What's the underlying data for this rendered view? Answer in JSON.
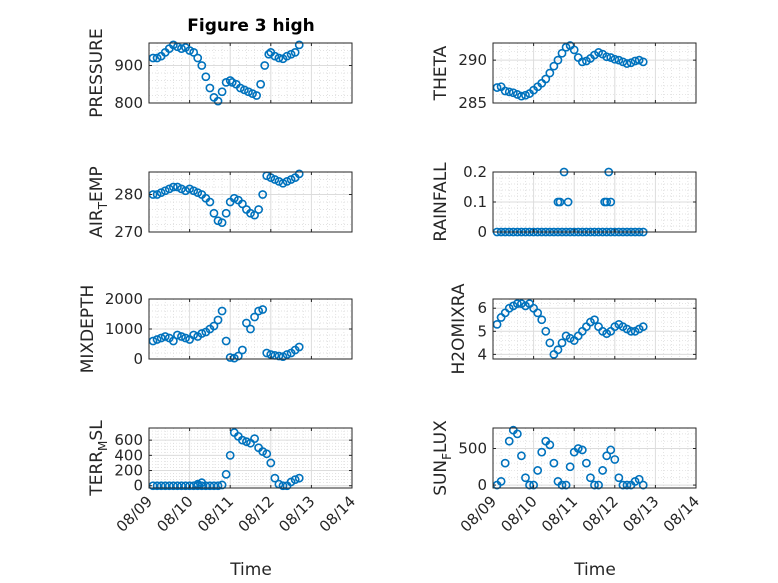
{
  "figure": {
    "title": "Figure 3 high",
    "marker_color": "#0072BD",
    "grid": true,
    "x_labels": {
      "left": "Time",
      "right": "Time"
    }
  },
  "chart_data": [
    {
      "type": "scatter",
      "ylabel": "PRESSURE",
      "ylabel_parts": [
        "PRESSURE"
      ],
      "ylim": [
        800,
        960
      ],
      "yticks": [
        800,
        900
      ],
      "xlim": [
        0,
        5
      ],
      "xticks": [
        0,
        1,
        2,
        3,
        4,
        5
      ],
      "xticklabels": [
        "08/09",
        "08/10",
        "08/11",
        "08/12",
        "08/13",
        "08/14"
      ],
      "x": [
        0.1,
        0.2,
        0.3,
        0.4,
        0.5,
        0.6,
        0.7,
        0.8,
        0.9,
        1.0,
        1.1,
        1.2,
        1.3,
        1.4,
        1.5,
        1.6,
        1.7,
        1.8,
        1.9,
        2.0,
        2.05,
        2.15,
        2.25,
        2.35,
        2.45,
        2.55,
        2.65,
        2.75,
        2.85,
        2.95,
        3.0,
        3.1,
        3.2,
        3.3,
        3.4,
        3.5,
        3.6,
        3.7
      ],
      "y": [
        920,
        920,
        925,
        935,
        945,
        955,
        950,
        945,
        948,
        940,
        935,
        920,
        900,
        870,
        840,
        815,
        805,
        830,
        855,
        860,
        855,
        850,
        840,
        835,
        830,
        825,
        820,
        850,
        900,
        930,
        935,
        925,
        920,
        918,
        925,
        930,
        935,
        955
      ]
    },
    {
      "type": "scatter",
      "ylabel": "THETA",
      "ylabel_parts": [
        "THETA"
      ],
      "ylim": [
        285,
        292
      ],
      "yticks": [
        285,
        290
      ],
      "xlim": [
        0,
        5
      ],
      "xticks": [
        0,
        1,
        2,
        3,
        4,
        5
      ],
      "xticklabels": [
        "08/09",
        "08/10",
        "08/11",
        "08/12",
        "08/13",
        "08/14"
      ],
      "x": [
        0.1,
        0.2,
        0.3,
        0.4,
        0.5,
        0.6,
        0.7,
        0.8,
        0.9,
        1.0,
        1.1,
        1.2,
        1.3,
        1.4,
        1.5,
        1.6,
        1.7,
        1.8,
        1.9,
        2.0,
        2.1,
        2.2,
        2.3,
        2.4,
        2.5,
        2.6,
        2.7,
        2.8,
        2.9,
        3.0,
        3.1,
        3.2,
        3.3,
        3.4,
        3.5,
        3.6,
        3.7
      ],
      "y": [
        286.8,
        286.9,
        286.4,
        286.3,
        286.2,
        286.0,
        285.8,
        285.9,
        286.1,
        286.5,
        286.9,
        287.3,
        287.8,
        288.5,
        289.3,
        290.0,
        290.8,
        291.5,
        291.7,
        291.2,
        290.3,
        289.8,
        289.9,
        290.2,
        290.6,
        290.9,
        290.7,
        290.4,
        290.3,
        290.1,
        290.0,
        289.8,
        289.6,
        289.7,
        289.9,
        290.0,
        289.8
      ]
    },
    {
      "type": "scatter",
      "ylabel": "AIR_TEMP",
      "ylabel_parts": [
        "AIR",
        "T",
        "EMP"
      ],
      "ylim": [
        270,
        286
      ],
      "yticks": [
        270,
        280
      ],
      "xlim": [
        0,
        5
      ],
      "xticks": [
        0,
        1,
        2,
        3,
        4,
        5
      ],
      "xticklabels": [
        "08/09",
        "08/10",
        "08/11",
        "08/12",
        "08/13",
        "08/14"
      ],
      "x": [
        0.1,
        0.2,
        0.3,
        0.4,
        0.5,
        0.6,
        0.7,
        0.8,
        0.9,
        1.0,
        1.1,
        1.2,
        1.3,
        1.4,
        1.5,
        1.6,
        1.7,
        1.8,
        1.9,
        2.0,
        2.1,
        2.2,
        2.3,
        2.4,
        2.5,
        2.6,
        2.7,
        2.8,
        2.9,
        3.0,
        3.1,
        3.2,
        3.3,
        3.4,
        3.5,
        3.6,
        3.7
      ],
      "y": [
        280,
        280,
        280.5,
        281,
        281.5,
        282,
        282,
        281.5,
        281,
        281.5,
        281,
        280.5,
        280,
        279,
        278,
        275,
        273,
        272.5,
        275,
        278,
        279,
        278.5,
        277.5,
        276,
        275,
        274.5,
        276,
        280,
        285,
        284.5,
        284,
        283.5,
        283,
        283.5,
        284,
        284.5,
        285.5
      ]
    },
    {
      "type": "scatter",
      "ylabel": "RAINFALL",
      "ylabel_parts": [
        "RAINFALL"
      ],
      "ylim": [
        0,
        0.2
      ],
      "yticks": [
        0,
        0.1,
        0.2
      ],
      "xlim": [
        0,
        5
      ],
      "xticks": [
        0,
        1,
        2,
        3,
        4,
        5
      ],
      "xticklabels": [
        "08/09",
        "08/10",
        "08/11",
        "08/12",
        "08/13",
        "08/14"
      ],
      "x": [
        0.1,
        0.2,
        0.3,
        0.4,
        0.5,
        0.6,
        0.7,
        0.8,
        0.9,
        1.0,
        1.1,
        1.2,
        1.3,
        1.4,
        1.5,
        1.6,
        1.7,
        1.8,
        1.9,
        2.0,
        2.1,
        2.2,
        2.3,
        2.4,
        2.5,
        2.6,
        2.7,
        2.8,
        2.9,
        3.0,
        3.1,
        3.2,
        3.3,
        3.4,
        3.5,
        3.6,
        3.7,
        1.6,
        1.65,
        1.75,
        1.85,
        2.75,
        2.8,
        2.85,
        2.9
      ],
      "y": [
        0,
        0,
        0,
        0,
        0,
        0,
        0,
        0,
        0,
        0,
        0,
        0,
        0,
        0,
        0,
        0,
        0,
        0,
        0,
        0,
        0,
        0,
        0,
        0,
        0,
        0,
        0,
        0,
        0,
        0,
        0,
        0,
        0,
        0,
        0,
        0,
        0,
        0.1,
        0.1,
        0.2,
        0.1,
        0.1,
        0.1,
        0.2,
        0.1
      ]
    },
    {
      "type": "scatter",
      "ylabel": "MIXDEPTH",
      "ylabel_parts": [
        "MIXDEPTH"
      ],
      "ylim": [
        0,
        2000
      ],
      "yticks": [
        0,
        1000,
        2000
      ],
      "xlim": [
        0,
        5
      ],
      "xticks": [
        0,
        1,
        2,
        3,
        4,
        5
      ],
      "xticklabels": [
        "08/09",
        "08/10",
        "08/11",
        "08/12",
        "08/13",
        "08/14"
      ],
      "x": [
        0.1,
        0.2,
        0.3,
        0.4,
        0.5,
        0.6,
        0.7,
        0.8,
        0.9,
        1.0,
        1.1,
        1.2,
        1.3,
        1.4,
        1.5,
        1.6,
        1.7,
        1.8,
        1.9,
        2.0,
        2.1,
        2.2,
        2.3,
        2.4,
        2.5,
        2.6,
        2.7,
        2.8,
        2.9,
        3.0,
        3.1,
        3.2,
        3.3,
        3.4,
        3.5,
        3.6,
        3.7
      ],
      "y": [
        600,
        650,
        700,
        750,
        700,
        600,
        800,
        750,
        700,
        650,
        800,
        750,
        850,
        900,
        1000,
        1100,
        1300,
        1600,
        600,
        50,
        30,
        100,
        300,
        1200,
        1000,
        1400,
        1600,
        1650,
        200,
        150,
        120,
        100,
        80,
        150,
        200,
        300,
        400
      ]
    },
    {
      "type": "scatter",
      "ylabel": "H2OMIXRA",
      "ylabel_parts": [
        "H2OMIXRA"
      ],
      "ylim": [
        3.8,
        6.4
      ],
      "yticks": [
        4,
        5,
        6
      ],
      "xlim": [
        0,
        5
      ],
      "xticks": [
        0,
        1,
        2,
        3,
        4,
        5
      ],
      "xticklabels": [
        "08/09",
        "08/10",
        "08/11",
        "08/12",
        "08/13",
        "08/14"
      ],
      "x": [
        0.1,
        0.2,
        0.3,
        0.4,
        0.5,
        0.6,
        0.7,
        0.8,
        0.9,
        1.0,
        1.1,
        1.2,
        1.3,
        1.4,
        1.5,
        1.6,
        1.7,
        1.8,
        1.9,
        2.0,
        2.1,
        2.2,
        2.3,
        2.4,
        2.5,
        2.6,
        2.7,
        2.8,
        2.9,
        3.0,
        3.1,
        3.2,
        3.3,
        3.4,
        3.5,
        3.6,
        3.7
      ],
      "y": [
        5.3,
        5.6,
        5.8,
        6.0,
        6.1,
        6.2,
        6.2,
        6.1,
        6.2,
        6.0,
        5.8,
        5.5,
        5.0,
        4.5,
        4.0,
        4.2,
        4.5,
        4.8,
        4.7,
        4.6,
        4.8,
        5.0,
        5.2,
        5.4,
        5.5,
        5.2,
        5.0,
        4.9,
        5.0,
        5.2,
        5.3,
        5.2,
        5.1,
        5.0,
        5.0,
        5.1,
        5.2
      ]
    },
    {
      "type": "scatter",
      "ylabel": "TERR_MSL",
      "ylabel_parts": [
        "TERR",
        "M",
        "SL"
      ],
      "ylim": [
        -30,
        760
      ],
      "yticks": [
        0,
        200,
        400,
        600
      ],
      "xlim": [
        0,
        5
      ],
      "xticks": [
        0,
        1,
        2,
        3,
        4,
        5
      ],
      "xticklabels": [
        "08/09",
        "08/10",
        "08/11",
        "08/12",
        "08/13",
        "08/14"
      ],
      "x": [
        0.1,
        0.2,
        0.3,
        0.4,
        0.5,
        0.6,
        0.7,
        0.8,
        0.9,
        1.0,
        1.1,
        1.2,
        1.3,
        1.4,
        1.5,
        1.6,
        1.7,
        1.8,
        1.9,
        2.0,
        2.1,
        2.2,
        2.3,
        2.4,
        2.5,
        2.6,
        2.7,
        2.8,
        2.9,
        3.0,
        3.1,
        3.2,
        3.3,
        3.4,
        3.5,
        3.6,
        3.7,
        1.3,
        1.2
      ],
      "y": [
        0,
        0,
        0,
        0,
        0,
        0,
        0,
        0,
        0,
        0,
        0,
        0,
        0,
        0,
        0,
        0,
        0,
        10,
        150,
        400,
        700,
        650,
        600,
        580,
        560,
        620,
        500,
        450,
        420,
        300,
        100,
        20,
        0,
        0,
        50,
        80,
        100,
        40,
        20
      ]
    },
    {
      "type": "scatter",
      "ylabel": "SUN_FLUX",
      "ylabel_parts": [
        "SUN",
        "F",
        "LUX"
      ],
      "ylim": [
        -40,
        780
      ],
      "yticks": [
        0,
        500
      ],
      "xlim": [
        0,
        5
      ],
      "xticks": [
        0,
        1,
        2,
        3,
        4,
        5
      ],
      "xticklabels": [
        "08/09",
        "08/10",
        "08/11",
        "08/12",
        "08/13",
        "08/14"
      ],
      "x": [
        0.1,
        0.2,
        0.3,
        0.4,
        0.5,
        0.6,
        0.7,
        0.8,
        0.9,
        1.0,
        1.1,
        1.2,
        1.3,
        1.4,
        1.5,
        1.6,
        1.7,
        1.8,
        1.9,
        2.0,
        2.1,
        2.2,
        2.3,
        2.4,
        2.5,
        2.6,
        2.7,
        2.8,
        2.9,
        3.0,
        3.1,
        3.2,
        3.3,
        3.4,
        3.5,
        3.6,
        3.7
      ],
      "y": [
        0,
        50,
        300,
        600,
        750,
        700,
        400,
        100,
        0,
        0,
        200,
        450,
        600,
        550,
        300,
        50,
        0,
        0,
        250,
        450,
        500,
        480,
        300,
        100,
        0,
        0,
        200,
        400,
        480,
        350,
        100,
        0,
        0,
        0,
        50,
        80,
        0
      ]
    }
  ]
}
